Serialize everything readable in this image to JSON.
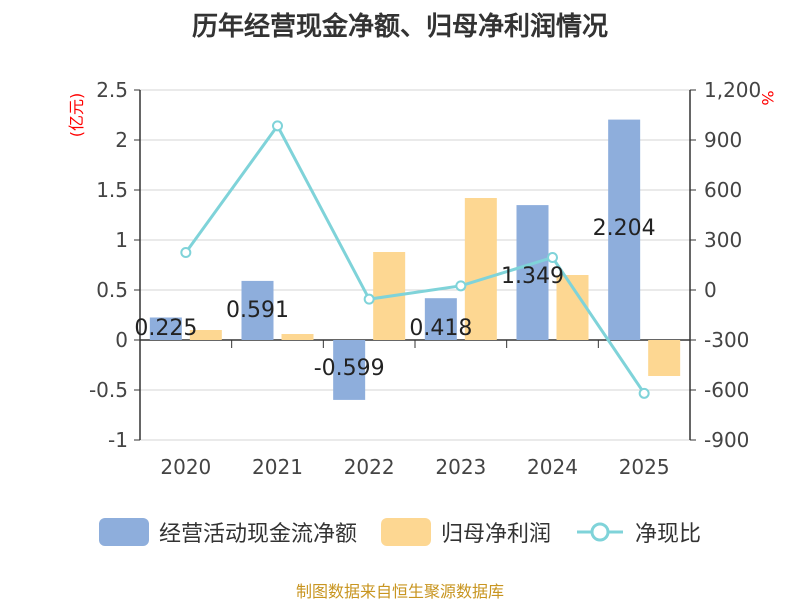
{
  "chart_data": {
    "type": "bar",
    "title": "历年经营现金净额、归母净利润情况",
    "categories": [
      "2020",
      "2021",
      "2022",
      "2023",
      "2024",
      "2025"
    ],
    "series": [
      {
        "name": "经营活动现金流净额",
        "kind": "bar",
        "axis": "left",
        "color": "#8eaedc",
        "values": [
          0.225,
          0.591,
          -0.599,
          0.418,
          1.349,
          2.204
        ],
        "labels": [
          "0.225",
          "0.591",
          "-0.599",
          "0.418",
          "1.349",
          "2.204"
        ]
      },
      {
        "name": "归母净利润",
        "kind": "bar",
        "axis": "left",
        "color": "#fdd792",
        "values": [
          0.1,
          0.06,
          0.88,
          1.42,
          0.65,
          -0.36
        ]
      },
      {
        "name": "净现比",
        "kind": "line",
        "axis": "right",
        "color": "#7fd3d9",
        "values": [
          225,
          985,
          -55,
          25,
          195,
          -620
        ]
      }
    ],
    "ylabel_left": "(亿元)",
    "ylabel_right": "%",
    "ylim_left": [
      -1,
      2.5
    ],
    "ylim_right": [
      -900,
      1200
    ],
    "yticks_left": [
      "-1",
      "-0.5",
      "0",
      "0.5",
      "1",
      "1.5",
      "2",
      "2.5"
    ],
    "yticks_right": [
      "-900",
      "-600",
      "-300",
      "0",
      "300",
      "600",
      "900",
      "1,200"
    ],
    "grid": true,
    "legend_position": "bottom",
    "source": "制图数据来自恒生聚源数据库"
  }
}
